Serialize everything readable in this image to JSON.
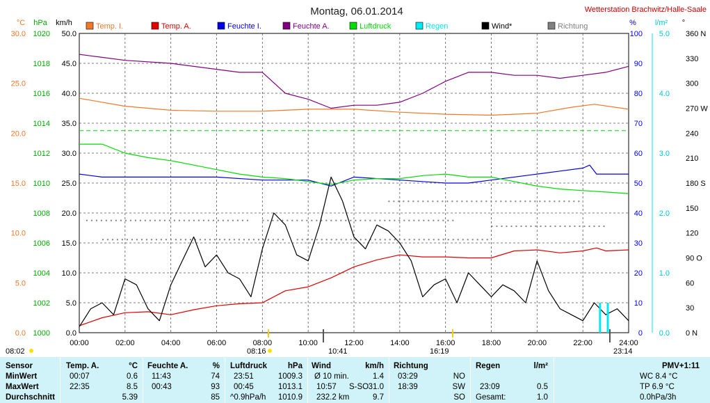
{
  "title": "Montag, 06.01.2014",
  "station": "Wetterstation Brachwitz/Halle-Saale",
  "axis_units": {
    "temp": "°C",
    "press": "hPa",
    "wind": "km/h",
    "hum": "%",
    "rain": "l/m²",
    "dir": "°"
  },
  "colors": {
    "temp_i": "#f07828",
    "temp_a": "#e00000",
    "feuchte_i": "#0000e0",
    "feuchte_a": "#800080",
    "luftdruck": "#00dd00",
    "regen": "#00e8f0",
    "wind": "#000000",
    "richtung": "#808080",
    "title": "#202020",
    "station": "#cc0000",
    "table_bg": "#cff3f8"
  },
  "axis_ticks": {
    "temp": [
      "30.0",
      "25.0",
      "20.0",
      "15.0",
      "10.0",
      "5.0",
      "0.0"
    ],
    "press": [
      "1020",
      "1018",
      "1016",
      "1014",
      "1012",
      "1010",
      "1008",
      "1006",
      "1004",
      "1002",
      "1000"
    ],
    "wind": [
      "50.0",
      "45.0",
      "40.0",
      "35.0",
      "30.0",
      "25.0",
      "20.0",
      "15.0",
      "10.0",
      "5.0",
      "0.0"
    ],
    "hum": [
      "100",
      "90",
      "80",
      "70",
      "60",
      "50",
      "40",
      "30",
      "20",
      "10",
      "0"
    ],
    "rain": [
      "5.0",
      "4.0",
      "3.0",
      "2.0",
      "1.0",
      "0.0"
    ],
    "dir": [
      "360 N",
      "330",
      "300",
      "270 W",
      "240",
      "210",
      "180 S",
      "150",
      "120",
      "90 O",
      "60",
      "30",
      "0 N"
    ],
    "time": [
      "00:00",
      "02:00",
      "04:00",
      "06:00",
      "08:00",
      "10:00",
      "12:00",
      "14:00",
      "16:00",
      "18:00",
      "20:00",
      "22:00",
      "24:00"
    ]
  },
  "sun_marks": {
    "sunrise": "08:02",
    "sunset": "16:19",
    "high_noon_label": "08:16",
    "moon1": "10:41",
    "moon2": "23:14"
  },
  "chart_data": {
    "type": "line",
    "title": "Montag, 06.01.2014",
    "x_unit": "time of day (hours)",
    "xlim": [
      0,
      24
    ],
    "legend": [
      "Temp. I.",
      "Temp. A.",
      "Feuchte I.",
      "Feuchte A.",
      "Luftdruck",
      "Regen",
      "Wind*",
      "Richtung"
    ],
    "legend_placement": "top",
    "grid": true,
    "series": [
      {
        "name": "Temp. I.",
        "axis": "°C",
        "x": [
          0,
          2,
          4,
          6,
          8,
          10,
          12,
          14,
          16,
          18,
          20,
          21.5,
          22.5,
          24
        ],
        "values": [
          23.5,
          22.7,
          22.3,
          22.2,
          22.2,
          22.4,
          22.4,
          22.1,
          21.9,
          21.8,
          22.0,
          22.6,
          22.9,
          22.4
        ]
      },
      {
        "name": "Temp. A.",
        "axis": "°C",
        "x": [
          0,
          1,
          2,
          3,
          4,
          5,
          6,
          7,
          8,
          9,
          10,
          11,
          12,
          13,
          14,
          15,
          16,
          17,
          18,
          19,
          20,
          21,
          22,
          22.6,
          23,
          24
        ],
        "values": [
          0.7,
          1.5,
          2.0,
          2.1,
          1.8,
          2.3,
          2.7,
          2.9,
          3.0,
          4.2,
          4.6,
          5.5,
          6.6,
          7.3,
          7.8,
          7.6,
          7.6,
          7.5,
          7.5,
          8.2,
          8.3,
          8.0,
          8.2,
          8.5,
          8.2,
          8.3
        ]
      },
      {
        "name": "Feuchte I.",
        "axis": "%",
        "x": [
          0,
          1,
          2,
          4,
          6,
          8,
          10,
          11,
          12,
          14,
          16,
          17,
          18,
          20,
          21,
          22,
          22.3,
          22.6,
          24
        ],
        "values": [
          53,
          52,
          52,
          52,
          52,
          51,
          51,
          49,
          52,
          51,
          50,
          50,
          51,
          53,
          54,
          55,
          56,
          53,
          53
        ]
      },
      {
        "name": "Feuchte A.",
        "axis": "%",
        "x": [
          0,
          1,
          2,
          4,
          6,
          7,
          8,
          9,
          10,
          11,
          12,
          13,
          14,
          15,
          16,
          17,
          18,
          19,
          20,
          21,
          22,
          23,
          24
        ],
        "values": [
          93,
          92,
          91,
          90,
          88,
          87,
          87,
          80,
          78,
          75,
          76,
          76,
          77,
          80,
          84,
          87,
          87,
          86,
          86,
          85,
          86,
          87,
          89
        ]
      },
      {
        "name": "Luftdruck",
        "axis": "hPa",
        "x": [
          0,
          1,
          2,
          3,
          4,
          5,
          6,
          7,
          8,
          9,
          10,
          11,
          12,
          13,
          14,
          15,
          16,
          17,
          18,
          19,
          20,
          21,
          22,
          23,
          24
        ],
        "values": [
          1012.6,
          1012.6,
          1012.0,
          1011.7,
          1011.5,
          1011.2,
          1010.9,
          1010.6,
          1010.4,
          1010.3,
          1010.1,
          1009.9,
          1010.2,
          1010.3,
          1010.3,
          1010.5,
          1010.6,
          1010.4,
          1010.4,
          1010.1,
          1009.8,
          1009.6,
          1009.5,
          1009.4,
          1009.3
        ]
      },
      {
        "name": "Wind*",
        "axis": "km/h",
        "x": [
          0,
          0.5,
          1,
          1.5,
          2,
          2.5,
          3,
          3.5,
          4,
          4.5,
          5,
          5.5,
          6,
          6.5,
          7,
          7.5,
          8,
          8.5,
          9,
          9.5,
          10,
          10.5,
          11,
          11.5,
          12,
          12.5,
          13,
          13.5,
          14,
          14.5,
          15,
          15.5,
          16,
          16.5,
          17,
          17.5,
          18,
          18.5,
          19,
          19.5,
          20,
          20.5,
          21,
          21.5,
          22,
          22.5,
          23,
          23.5,
          24
        ],
        "values": [
          1,
          4,
          5,
          3,
          9,
          8,
          4,
          2,
          8,
          12,
          16,
          11,
          13,
          10,
          9,
          6,
          14,
          20,
          18,
          13,
          12,
          18,
          26,
          22,
          16,
          14,
          18,
          17,
          15,
          12,
          6,
          8,
          9,
          5,
          10,
          8,
          6,
          8,
          7,
          5,
          12,
          7,
          4,
          3,
          2,
          5,
          3,
          4,
          2
        ]
      },
      {
        "name": "Regen",
        "axis": "l/m²",
        "x": [
          22.7,
          22.75,
          23.09,
          23.14
        ],
        "values": [
          0,
          0.5,
          0.5,
          0
        ]
      }
    ],
    "richtung_dots": [
      {
        "x": [
          0.3,
          7.5
        ],
        "deg": 135
      },
      {
        "x": [
          8.0,
          16.5
        ],
        "deg": 135
      },
      {
        "x": [
          1.0,
          9.0
        ],
        "deg": 112
      },
      {
        "x": [
          9.5,
          18.0
        ],
        "deg": 112
      },
      {
        "x": [
          18.0,
          23.0
        ],
        "deg": 128
      },
      {
        "x": [
          13.5,
          22.0
        ],
        "deg": 158
      }
    ]
  },
  "table": {
    "rows": [
      "Sensor",
      "MinWert",
      "MaxWert",
      "Durchschnitt"
    ],
    "temp": {
      "title": "Temp. A.",
      "unit": "°C",
      "min_time": "00:07",
      "min": "0.6",
      "max_time": "22:35",
      "max": "8.5",
      "avg": "5.39"
    },
    "hum": {
      "title": "Feuchte A.",
      "unit": "%",
      "min_time": "11:43",
      "min": "74",
      "max_time": "00:43",
      "max": "93",
      "avg": "85"
    },
    "press": {
      "title": "Luftdruck",
      "unit": "hPa",
      "min_time": "23:51",
      "min": "1009.3",
      "max_time": "00:45",
      "max": "1013.1",
      "avg_label": "^0.9hPa/h",
      "avg": "1010.9"
    },
    "wind": {
      "title": "Wind",
      "unit": "km/h",
      "min_time": "Ø 10 min.",
      "min": "1.4",
      "max_time": "10:57",
      "max_dir": "S-SO",
      "max": "31.0",
      "avg_label": "232.2 km",
      "avg": "9.7"
    },
    "dir": {
      "title": "Richtung",
      "min_time": "03:29",
      "min": "NO",
      "max_time": "18:39",
      "max": "SW",
      "avg": "SO"
    },
    "rain": {
      "title": "Regen",
      "unit": "l/m²",
      "max_time": "23:09",
      "max": "0.5",
      "avg_label": "Gesamt:",
      "avg": "1.0"
    },
    "pmv": {
      "title": "PMV+1:11",
      "wc": "WC 8.4 °C",
      "tp": "TP 6.9 °C",
      "rate": "0.0hPa/3h"
    }
  }
}
